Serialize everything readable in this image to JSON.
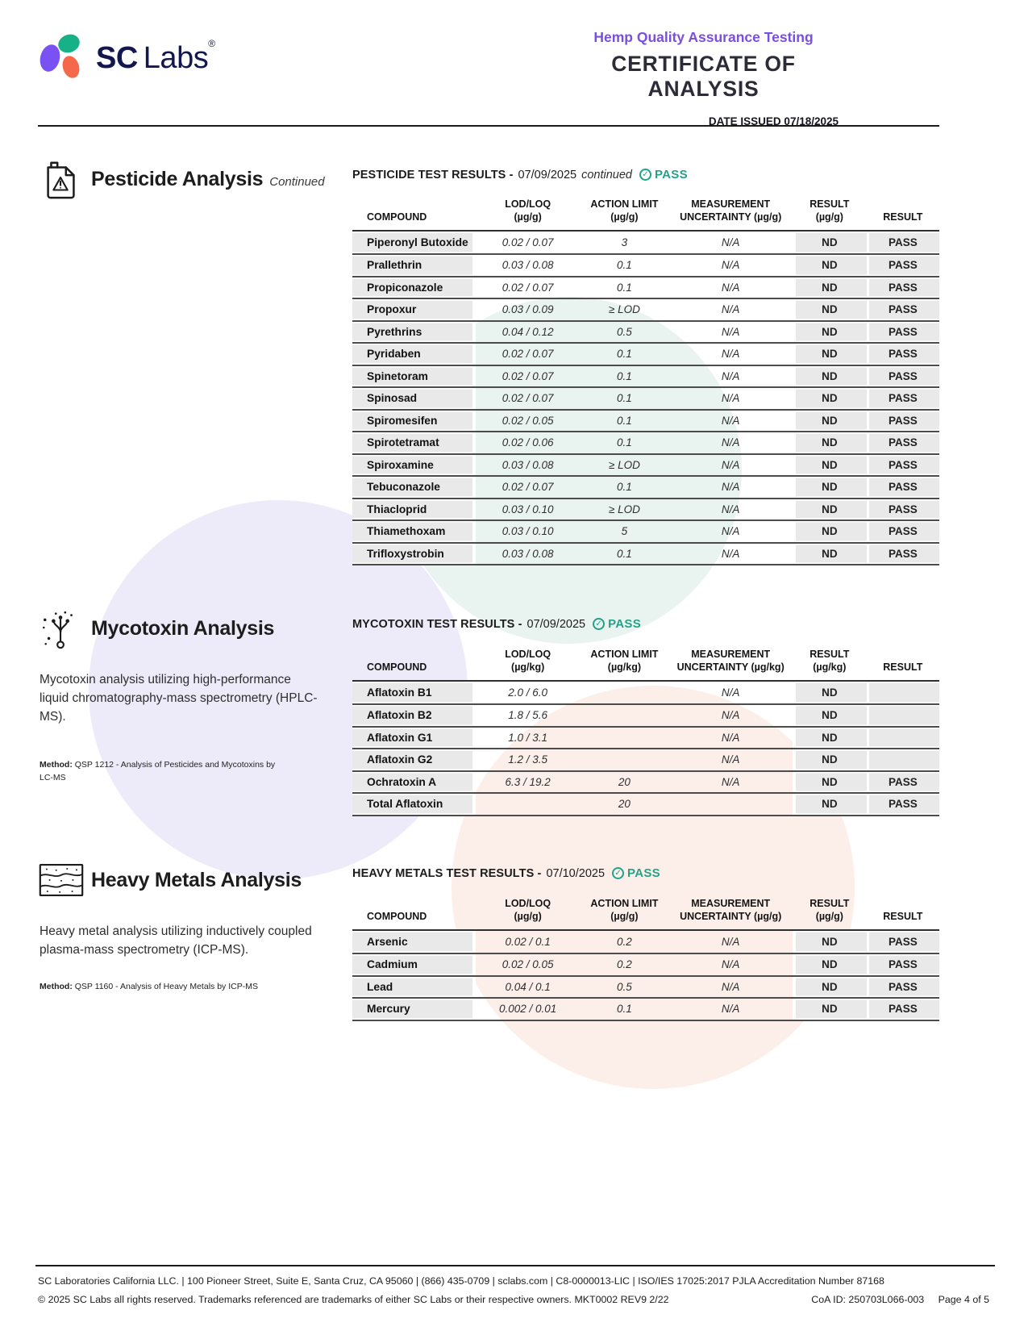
{
  "header": {
    "logo_text_bold": "SC",
    "logo_text_light": "Labs",
    "logo_registered": "®",
    "program": "Hemp Quality Assurance Testing",
    "title": "CERTIFICATE OF ANALYSIS",
    "date_issued": "DATE ISSUED 07/18/2025"
  },
  "pesticide": {
    "section_title": "Pesticide Analysis",
    "section_subtitle": "Continued",
    "icon": "pesticide-jug-warning-icon",
    "results_label": "PESTICIDE TEST RESULTS -",
    "results_date": "07/09/2025",
    "results_note": "continued",
    "status": "PASS",
    "table": {
      "columns": [
        {
          "label": "COMPOUND",
          "sub": ""
        },
        {
          "label": "LOD/LOQ",
          "sub": "(µg/g)"
        },
        {
          "label": "ACTION LIMIT",
          "sub": "(µg/g)"
        },
        {
          "label": "MEASUREMENT",
          "sub": "UNCERTAINTY (µg/g)"
        },
        {
          "label": "RESULT",
          "sub": "(µg/g)"
        },
        {
          "label": "RESULT",
          "sub": ""
        }
      ],
      "rows": [
        [
          "Piperonyl Butoxide",
          "0.02 / 0.07",
          "3",
          "N/A",
          "ND",
          "PASS"
        ],
        [
          "Prallethrin",
          "0.03 / 0.08",
          "0.1",
          "N/A",
          "ND",
          "PASS"
        ],
        [
          "Propiconazole",
          "0.02 / 0.07",
          "0.1",
          "N/A",
          "ND",
          "PASS"
        ],
        [
          "Propoxur",
          "0.03 / 0.09",
          "≥ LOD",
          "N/A",
          "ND",
          "PASS"
        ],
        [
          "Pyrethrins",
          "0.04 / 0.12",
          "0.5",
          "N/A",
          "ND",
          "PASS"
        ],
        [
          "Pyridaben",
          "0.02 / 0.07",
          "0.1",
          "N/A",
          "ND",
          "PASS"
        ],
        [
          "Spinetoram",
          "0.02 / 0.07",
          "0.1",
          "N/A",
          "ND",
          "PASS"
        ],
        [
          "Spinosad",
          "0.02 / 0.07",
          "0.1",
          "N/A",
          "ND",
          "PASS"
        ],
        [
          "Spiromesifen",
          "0.02 / 0.05",
          "0.1",
          "N/A",
          "ND",
          "PASS"
        ],
        [
          "Spirotetramat",
          "0.02 / 0.06",
          "0.1",
          "N/A",
          "ND",
          "PASS"
        ],
        [
          "Spiroxamine",
          "0.03 / 0.08",
          "≥ LOD",
          "N/A",
          "ND",
          "PASS"
        ],
        [
          "Tebuconazole",
          "0.02 / 0.07",
          "0.1",
          "N/A",
          "ND",
          "PASS"
        ],
        [
          "Thiacloprid",
          "0.03 / 0.10",
          "≥ LOD",
          "N/A",
          "ND",
          "PASS"
        ],
        [
          "Thiamethoxam",
          "0.03 / 0.10",
          "5",
          "N/A",
          "ND",
          "PASS"
        ],
        [
          "Trifloxystrobin",
          "0.03 / 0.08",
          "0.1",
          "N/A",
          "ND",
          "PASS"
        ]
      ]
    }
  },
  "mycotoxin": {
    "section_title": "Mycotoxin Analysis",
    "icon": "mycotoxin-spore-icon",
    "description": "Mycotoxin analysis utilizing high-performance liquid chromatography-mass spectrometry (HPLC-MS).",
    "method_label": "Method:",
    "method": "QSP 1212 - Analysis of Pesticides and Mycotoxins by LC-MS",
    "results_label": "MYCOTOXIN TEST RESULTS -",
    "results_date": "07/09/2025",
    "status": "PASS",
    "table": {
      "columns": [
        {
          "label": "COMPOUND",
          "sub": ""
        },
        {
          "label": "LOD/LOQ",
          "sub": "(µg/kg)"
        },
        {
          "label": "ACTION LIMIT",
          "sub": "(µg/kg)"
        },
        {
          "label": "MEASUREMENT",
          "sub": "UNCERTAINTY (µg/kg)"
        },
        {
          "label": "RESULT",
          "sub": "(µg/kg)"
        },
        {
          "label": "RESULT",
          "sub": ""
        }
      ],
      "rows": [
        [
          "Aflatoxin B1",
          "2.0 / 6.0",
          "",
          "N/A",
          "ND",
          ""
        ],
        [
          "Aflatoxin B2",
          "1.8 / 5.6",
          "",
          "N/A",
          "ND",
          ""
        ],
        [
          "Aflatoxin G1",
          "1.0 / 3.1",
          "",
          "N/A",
          "ND",
          ""
        ],
        [
          "Aflatoxin G2",
          "1.2 / 3.5",
          "",
          "N/A",
          "ND",
          ""
        ],
        [
          "Ochratoxin A",
          "6.3 / 19.2",
          "20",
          "N/A",
          "ND",
          "PASS"
        ],
        [
          "Total Aflatoxin",
          "",
          "20",
          "",
          "ND",
          "PASS"
        ]
      ]
    }
  },
  "heavy_metals": {
    "section_title": "Heavy Metals Analysis",
    "icon": "heavy-metals-sediment-icon",
    "description": "Heavy metal analysis utilizing inductively coupled plasma-mass spectrometry (ICP-MS).",
    "method_label": "Method:",
    "method": "QSP 1160 - Analysis of Heavy Metals by ICP-MS",
    "results_label": "HEAVY METALS TEST RESULTS -",
    "results_date": "07/10/2025",
    "status": "PASS",
    "table": {
      "columns": [
        {
          "label": "COMPOUND",
          "sub": ""
        },
        {
          "label": "LOD/LOQ",
          "sub": "(µg/g)"
        },
        {
          "label": "ACTION LIMIT",
          "sub": "(µg/g)"
        },
        {
          "label": "MEASUREMENT",
          "sub": "UNCERTAINTY (µg/g)"
        },
        {
          "label": "RESULT",
          "sub": "(µg/g)"
        },
        {
          "label": "RESULT",
          "sub": ""
        }
      ],
      "rows": [
        [
          "Arsenic",
          "0.02 / 0.1",
          "0.2",
          "N/A",
          "ND",
          "PASS"
        ],
        [
          "Cadmium",
          "0.02 / 0.05",
          "0.2",
          "N/A",
          "ND",
          "PASS"
        ],
        [
          "Lead",
          "0.04 / 0.1",
          "0.5",
          "N/A",
          "ND",
          "PASS"
        ],
        [
          "Mercury",
          "0.002 / 0.01",
          "0.1",
          "N/A",
          "ND",
          "PASS"
        ]
      ]
    }
  },
  "footer": {
    "line1": "SC Laboratories California LLC. | 100 Pioneer Street, Suite E, Santa Cruz, CA 95060 | (866) 435-0709 | sclabs.com | C8-0000013-LIC | ISO/IES 17025:2017 PJLA Accreditation Number 87168",
    "line2_left": "© 2025 SC Labs all rights reserved. Trademarks referenced are trademarks of either SC Labs or their respective owners. MKT0002 REV9 2/22",
    "coa_id": "CoA ID: 250703L066-003",
    "page": "Page 4 of 5"
  },
  "colors": {
    "brand_purple": "#7A4FE0",
    "logo_teal": "#17B187",
    "logo_coral": "#F4694B",
    "logo_navy": "#14164E",
    "pass_teal": "#23A288",
    "row_gray": "#E9E9E9"
  }
}
